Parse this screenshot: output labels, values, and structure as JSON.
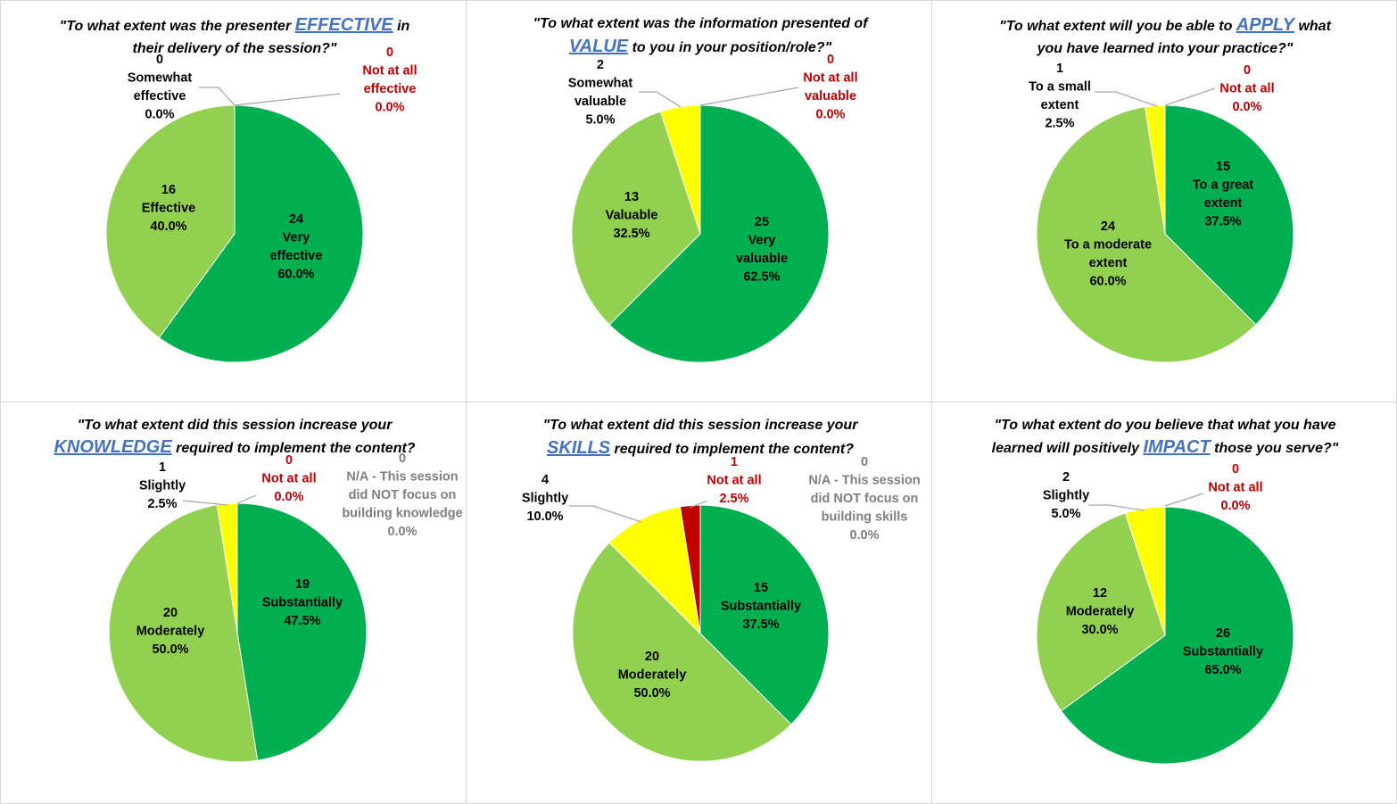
{
  "colors": {
    "very_high": "#00b050",
    "high": "#92d050",
    "low": "#ffff00",
    "none": "#c00000",
    "na": "#7f7f7f",
    "title_emphasis": "#4472c4"
  },
  "chart_data": [
    {
      "type": "pie",
      "title_lines": [
        [
          {
            "t": "\"To what extent was the presenter "
          },
          {
            "t": "EFFECTIVE",
            "em": true
          },
          {
            "t": " in"
          }
        ],
        [
          {
            "t": "their delivery of the session?\""
          }
        ]
      ],
      "slices": [
        {
          "count": "24",
          "name_lines": [
            "Very",
            "effective"
          ],
          "percent": "60.0%",
          "value": 24,
          "color": "#00b050"
        },
        {
          "count": "16",
          "name_lines": [
            "Effective"
          ],
          "percent": "40.0%",
          "value": 16,
          "color": "#92d050"
        },
        {
          "count": "0",
          "name_lines": [
            "Somewhat",
            "effective"
          ],
          "percent": "0.0%",
          "value": 0,
          "color": "#ffff00"
        },
        {
          "count": "0",
          "name_lines": [
            "Not at all",
            "effective"
          ],
          "percent": "0.0%",
          "value": 0,
          "color": "#c00000"
        }
      ]
    },
    {
      "type": "pie",
      "title_lines": [
        [
          {
            "t": "\"To what extent was the information presented of"
          }
        ],
        [
          {
            "t": "VALUE",
            "em": true
          },
          {
            "t": " to you in your position/role?\""
          }
        ]
      ],
      "slices": [
        {
          "count": "25",
          "name_lines": [
            "Very",
            "valuable"
          ],
          "percent": "62.5%",
          "value": 25,
          "color": "#00b050"
        },
        {
          "count": "13",
          "name_lines": [
            "Valuable"
          ],
          "percent": "32.5%",
          "value": 13,
          "color": "#92d050"
        },
        {
          "count": "2",
          "name_lines": [
            "Somewhat",
            "valuable"
          ],
          "percent": "5.0%",
          "value": 2,
          "color": "#ffff00"
        },
        {
          "count": "0",
          "name_lines": [
            "Not at all",
            "valuable"
          ],
          "percent": "0.0%",
          "value": 0,
          "color": "#c00000"
        }
      ]
    },
    {
      "type": "pie",
      "title_lines": [
        [
          {
            "t": "\"To what extent will you be able to "
          },
          {
            "t": "APPLY",
            "em": true
          },
          {
            "t": " what"
          }
        ],
        [
          {
            "t": "you have learned into your practice?\""
          }
        ]
      ],
      "slices": [
        {
          "count": "15",
          "name_lines": [
            "To a great",
            "extent"
          ],
          "percent": "37.5%",
          "value": 15,
          "color": "#00b050"
        },
        {
          "count": "24",
          "name_lines": [
            "To a moderate",
            "extent"
          ],
          "percent": "60.0%",
          "value": 24,
          "color": "#92d050"
        },
        {
          "count": "1",
          "name_lines": [
            "To a small",
            "extent"
          ],
          "percent": "2.5%",
          "value": 1,
          "color": "#ffff00"
        },
        {
          "count": "0",
          "name_lines": [
            "Not at all"
          ],
          "percent": "0.0%",
          "value": 0,
          "color": "#c00000"
        }
      ]
    },
    {
      "type": "pie",
      "title_lines": [
        [
          {
            "t": "\"To what extent did this session increase your"
          }
        ],
        [
          {
            "t": "KNOWLEDGE",
            "em": true
          },
          {
            "t": " required to implement the content?"
          }
        ]
      ],
      "slices": [
        {
          "count": "19",
          "name_lines": [
            "Substantially"
          ],
          "percent": "47.5%",
          "value": 19,
          "color": "#00b050"
        },
        {
          "count": "20",
          "name_lines": [
            "Moderately"
          ],
          "percent": "50.0%",
          "value": 20,
          "color": "#92d050"
        },
        {
          "count": "1",
          "name_lines": [
            "Slightly"
          ],
          "percent": "2.5%",
          "value": 1,
          "color": "#ffff00"
        },
        {
          "count": "0",
          "name_lines": [
            "Not at all"
          ],
          "percent": "0.0%",
          "value": 0,
          "color": "#c00000"
        },
        {
          "count": "0",
          "name_lines": [
            "N/A - This session",
            "did NOT focus on",
            "building knowledge"
          ],
          "percent": "0.0%",
          "value": 0,
          "color": "#7f7f7f"
        }
      ]
    },
    {
      "type": "pie",
      "title_lines": [
        [
          {
            "t": "\"To what extent did this session increase your"
          }
        ],
        [
          {
            "t": "SKILLS",
            "em": true
          },
          {
            "t": " required to implement the content?"
          }
        ]
      ],
      "slices": [
        {
          "count": "15",
          "name_lines": [
            "Substantially"
          ],
          "percent": "37.5%",
          "value": 15,
          "color": "#00b050"
        },
        {
          "count": "20",
          "name_lines": [
            "Moderately"
          ],
          "percent": "50.0%",
          "value": 20,
          "color": "#92d050"
        },
        {
          "count": "4",
          "name_lines": [
            "Slightly"
          ],
          "percent": "10.0%",
          "value": 4,
          "color": "#ffff00"
        },
        {
          "count": "1",
          "name_lines": [
            "Not at all"
          ],
          "percent": "2.5%",
          "value": 1,
          "color": "#c00000"
        },
        {
          "count": "0",
          "name_lines": [
            "N/A - This session",
            "did NOT focus on",
            "building skills"
          ],
          "percent": "0.0%",
          "value": 0,
          "color": "#7f7f7f"
        }
      ]
    },
    {
      "type": "pie",
      "title_lines": [
        [
          {
            "t": "\"To what extent do you believe that what you have"
          }
        ],
        [
          {
            "t": "learned will positively  "
          },
          {
            "t": "IMPACT",
            "em": true
          },
          {
            "t": " those you serve?\""
          }
        ]
      ],
      "slices": [
        {
          "count": "26",
          "name_lines": [
            "Substantially"
          ],
          "percent": "65.0%",
          "value": 26,
          "color": "#00b050"
        },
        {
          "count": "12",
          "name_lines": [
            "Moderately"
          ],
          "percent": "30.0%",
          "value": 12,
          "color": "#92d050"
        },
        {
          "count": "2",
          "name_lines": [
            "Slightly"
          ],
          "percent": "5.0%",
          "value": 2,
          "color": "#ffff00"
        },
        {
          "count": "0",
          "name_lines": [
            "Not at all"
          ],
          "percent": "0.0%",
          "value": 0,
          "color": "#c00000"
        }
      ]
    }
  ]
}
